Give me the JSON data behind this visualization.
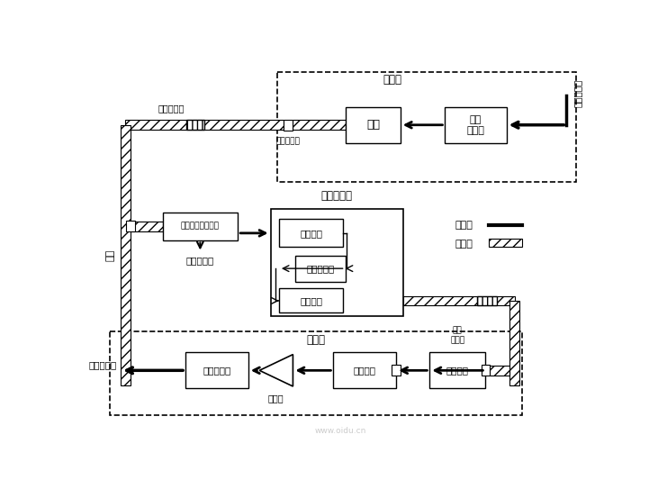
{
  "bg_color": "#ffffff",
  "fig_width": 7.31,
  "fig_height": 5.53,
  "dpi": 100,
  "sec1_title": "发端机",
  "sec1_elec_in": "电信号输入",
  "sec1_elec_driver": "电路\n驱动器",
  "sec1_light_source": "光源",
  "sec1_connector": "光线连接器",
  "sec1_amp_box": "光线放大盘",
  "sec2_title": "再生中继器",
  "sec2_mux": "光耳合器代波器束",
  "sec2_recv": "光检波器",
  "sec2_elec": "电路驱动器",
  "sec2_emit": "光发射器",
  "sec2_equip": "中继器设备",
  "sec3_title": "收端机",
  "sec3_light_amp": "光放大器",
  "sec3_demux": "光耳合器",
  "sec3_state": "光状\n态监测",
  "sec3_amplifier": "放大器",
  "sec3_detect": "信号检测器",
  "sec3_elec_out": "电信号输出",
  "legend_elec": "电信号",
  "legend_light": "光信号",
  "left_cable": "光羆"
}
